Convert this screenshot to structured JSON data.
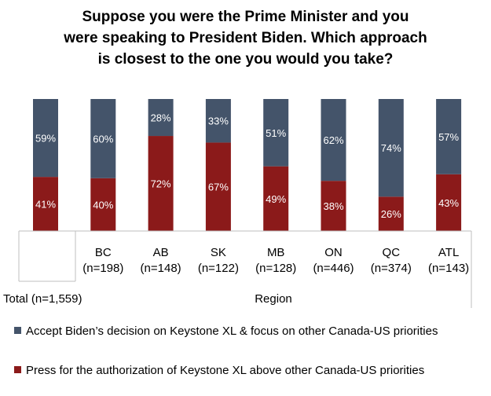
{
  "title_lines": [
    "Suppose you were the Prime Minister and you",
    "were speaking to President Biden. Which approach",
    "is closest to the one you would you take?"
  ],
  "colors": {
    "accept": "#44546A",
    "press": "#8B1A1A"
  },
  "chart_data": {
    "type": "bar",
    "stacked": true,
    "categories": [
      "Total (n=1,559)",
      "BC (n=198)",
      "AB (n=148)",
      "SK (n=122)",
      "MB (n=128)",
      "ON (n=446)",
      "QC (n=374)",
      "ATL (n=143)"
    ],
    "category_lines": [
      [
        "Total (n=1,559)"
      ],
      [
        "BC",
        "(n=198)"
      ],
      [
        "AB",
        "(n=148)"
      ],
      [
        "SK",
        "(n=122)"
      ],
      [
        "MB",
        "(n=128)"
      ],
      [
        "ON",
        "(n=446)"
      ],
      [
        "QC",
        "(n=374)"
      ],
      [
        "ATL",
        "(n=143)"
      ]
    ],
    "group_label": "Region",
    "series": [
      {
        "name": "Press for the authorization of Keystone XL above other Canada-US priorities",
        "values": [
          41,
          40,
          72,
          67,
          49,
          38,
          26,
          43
        ],
        "labels": [
          "41%",
          "40%",
          "72%",
          "67%",
          "49%",
          "38%",
          "26%",
          "43%"
        ]
      },
      {
        "name": "Accept Biden’s decision on Keystone XL & focus on other Canada-US priorities",
        "values": [
          59,
          60,
          28,
          33,
          51,
          62,
          74,
          57
        ],
        "labels": [
          "59%",
          "60%",
          "28%",
          "33%",
          "51%",
          "62%",
          "74%",
          "57%"
        ]
      }
    ],
    "ylim": [
      0,
      100
    ],
    "legend_position": "bottom"
  }
}
